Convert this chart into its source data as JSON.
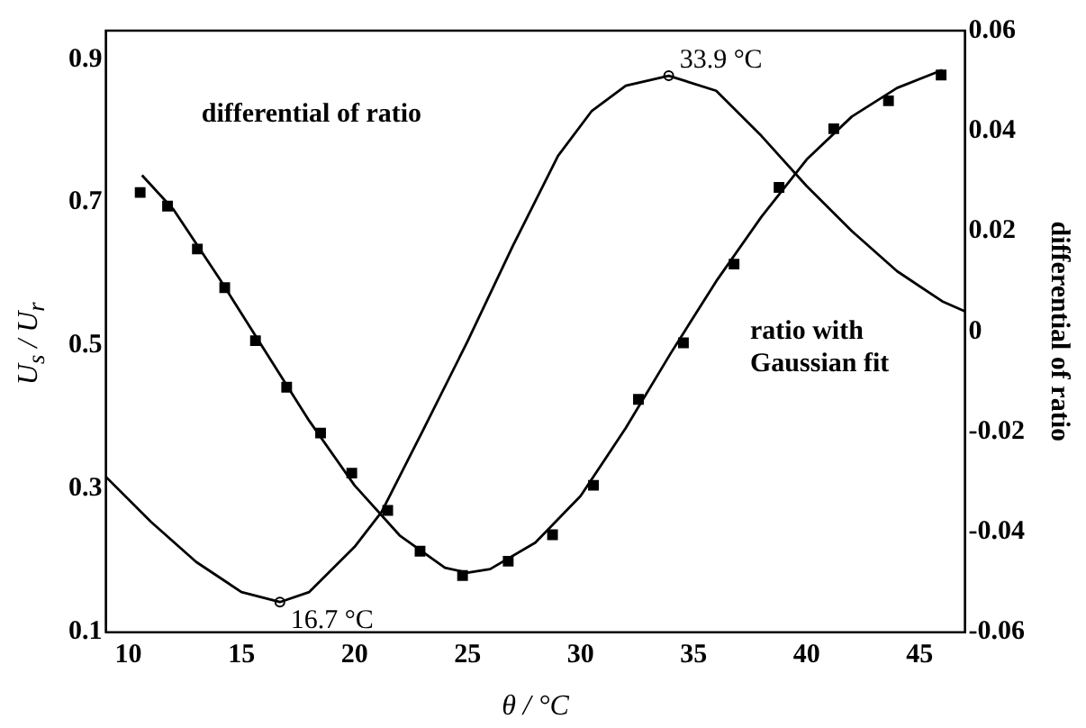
{
  "chart_data": {
    "type": "line",
    "xlabel": "θ / °C",
    "ylabel": "U$_{s}$ / U$_{r}$",
    "y2label": "differential of ratio",
    "xlim": [
      9,
      47
    ],
    "xticks": [
      10,
      15,
      20,
      25,
      30,
      35,
      40,
      45
    ],
    "ylim": [
      0.1,
      0.94
    ],
    "yticks": [
      0.1,
      0.3,
      0.5,
      0.7,
      0.9
    ],
    "y2lim": [
      -0.06,
      0.06
    ],
    "y2ticks": [
      -0.06,
      -0.04,
      -0.02,
      0,
      0.02,
      0.04,
      0.06
    ],
    "grid": false,
    "legend": false,
    "series": [
      {
        "type": "scatter",
        "marker": "square",
        "color": "#000000",
        "x": [
          10.52,
          11.73,
          13.05,
          14.26,
          15.62,
          17.0,
          18.5,
          19.88,
          21.47,
          22.9,
          24.78,
          26.8,
          28.76,
          30.57,
          32.56,
          34.55,
          36.79,
          38.78,
          41.2,
          43.62,
          45.95
        ],
        "values": [
          0.714,
          0.695,
          0.635,
          0.581,
          0.507,
          0.442,
          0.378,
          0.322,
          0.27,
          0.213,
          0.179,
          0.199,
          0.236,
          0.305,
          0.425,
          0.504,
          0.614,
          0.721,
          0.803,
          0.842,
          0.878
        ]
      },
      {
        "marker": "none",
        "line_style": "solid",
        "color": "#000000",
        "x": [
          10.6,
          12,
          14,
          16,
          18,
          20,
          22,
          24,
          25,
          26,
          28,
          30,
          32,
          34,
          36,
          38,
          40,
          42,
          44,
          46
        ],
        "values": [
          0.738,
          0.69,
          0.595,
          0.495,
          0.395,
          0.305,
          0.235,
          0.19,
          0.183,
          0.188,
          0.225,
          0.29,
          0.385,
          0.49,
          0.59,
          0.68,
          0.76,
          0.82,
          0.86,
          0.885
        ]
      },
      {
        "marker": "none",
        "line_style": "solid",
        "axis": "y2",
        "color": "#000000",
        "x": [
          9,
          11,
          13,
          15,
          16.7,
          18,
          20,
          21.2,
          23,
          25,
          27,
          29,
          30.5,
          32,
          33.9,
          36,
          38,
          40,
          42,
          44,
          46,
          47
        ],
        "values": [
          -0.029,
          -0.038,
          -0.046,
          -0.052,
          -0.054,
          -0.052,
          -0.043,
          -0.036,
          -0.02,
          -0.002,
          0.017,
          0.035,
          0.044,
          0.049,
          0.051,
          0.048,
          0.039,
          0.029,
          0.02,
          0.012,
          0.006,
          0.004
        ]
      },
      {
        "type": "scatter",
        "marker": "circle",
        "axis": "y2",
        "color": "#000000",
        "x": [
          16.7,
          33.9
        ],
        "values": [
          -0.054,
          0.051
        ]
      }
    ],
    "annotations": [
      "differential of ratio",
      "ratio with\nGaussian fit",
      {
        "text": "16.7 °C",
        "x": 16.7,
        "y": 0.139
      },
      {
        "text": "33.9 °C",
        "x": 33.9,
        "y": 0.885
      }
    ]
  }
}
